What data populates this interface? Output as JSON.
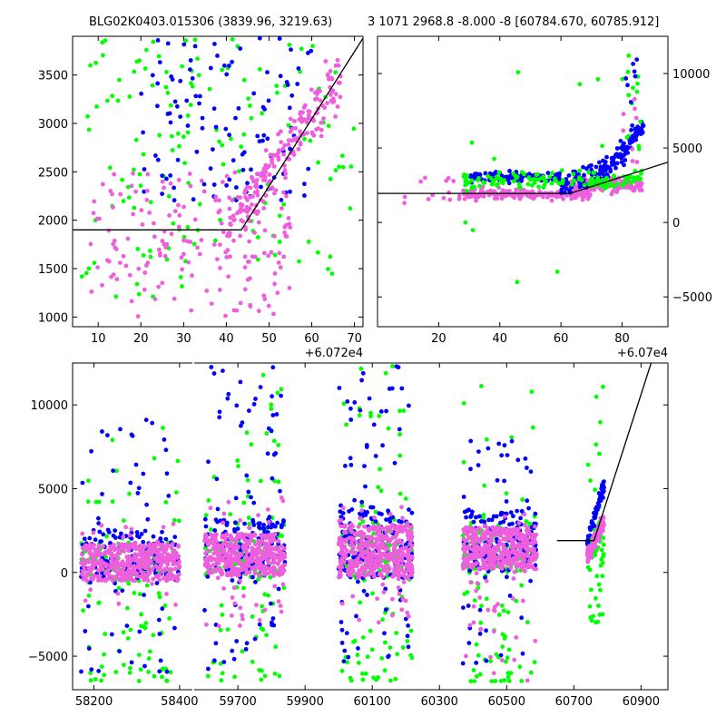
{
  "colors": {
    "green": "#00ff00",
    "blue": "#0000ff",
    "pink": "#ee5fdd",
    "line": "#000000"
  },
  "chart_data": [
    {
      "id": "zoom-left",
      "type": "scatter",
      "title": "BLG02K0403.015306 (3839.96, 3219.63)",
      "x_offset_label": "+6.072e4",
      "xlim": [
        4,
        72
      ],
      "ylim": [
        900,
        3900
      ],
      "xticks": [
        10,
        20,
        30,
        40,
        50,
        60,
        70
      ],
      "yticks": [
        1000,
        1500,
        2000,
        2500,
        3000,
        3500
      ],
      "yaxis_side": "left",
      "model": {
        "x": [
          4,
          43.5,
          72
        ],
        "y": [
          1900,
          1900,
          3880
        ]
      },
      "clouds": [
        {
          "series": "green",
          "x": [
            6,
            70
          ],
          "y": [
            1200,
            3900
          ],
          "n": 150
        },
        {
          "series": "blue",
          "x": [
            20,
            60
          ],
          "y": [
            2200,
            3900
          ],
          "n": 110
        },
        {
          "series": "pink",
          "x": [
            8,
            55
          ],
          "y": [
            1000,
            2500
          ],
          "n": 170
        },
        {
          "series": "pink",
          "x": [
            40,
            67
          ],
          "y": [
            1900,
            3500
          ],
          "n": 190
        }
      ]
    },
    {
      "id": "zoom-right",
      "type": "scatter",
      "title": "3 1071 2968.8 -8.000 -8 [60784.670, 60785.912]",
      "x_offset_label": "+6.07e4",
      "xlim": [
        0,
        95
      ],
      "ylim": [
        -7000,
        12500
      ],
      "xticks": [
        20,
        40,
        60,
        80
      ],
      "yticks": [
        -5000,
        0,
        5000,
        10000
      ],
      "yaxis_side": "right",
      "model": {
        "x": [
          0,
          63,
          95
        ],
        "y": [
          1950,
          1950,
          4050
        ]
      },
      "clouds": [
        {
          "series": "pink",
          "x": [
            8,
            30
          ],
          "y": [
            1300,
            3000
          ],
          "n": 14
        },
        {
          "series": "pink",
          "x": [
            28,
            70
          ],
          "y": [
            1000,
            2800
          ],
          "n": 170
        },
        {
          "series": "pink",
          "x": [
            60,
            87
          ],
          "y": [
            1500,
            3600
          ],
          "n": 150
        },
        {
          "series": "blue",
          "x": [
            30,
            60
          ],
          "y": [
            2200,
            3900
          ],
          "n": 110
        },
        {
          "series": "blue",
          "x": [
            60,
            87
          ],
          "y": [
            2500,
            6500
          ],
          "n": 150
        },
        {
          "series": "green",
          "x": [
            28,
            87
          ],
          "y": [
            1500,
            4200
          ],
          "n": 130
        },
        {
          "series": "green",
          "x": [
            80,
            86
          ],
          "y": [
            4500,
            12000
          ],
          "n": 14
        },
        {
          "series": "blue",
          "x": [
            80,
            86
          ],
          "y": [
            5000,
            11000
          ],
          "n": 8
        },
        {
          "series": "pink",
          "x": [
            80,
            86
          ],
          "y": [
            4000,
            8500
          ],
          "n": 8
        },
        {
          "series": "green",
          "x": [
            28,
            74
          ],
          "y": [
            -5200,
            11000
          ],
          "n": 12
        }
      ]
    },
    {
      "id": "lightcurve",
      "type": "scatter",
      "title": "",
      "ylim": [
        -7000,
        12500
      ],
      "yticks": [
        -5000,
        0,
        5000,
        10000
      ],
      "xticks": [
        58200,
        58400,
        59700,
        59900,
        60100,
        60300,
        60500,
        60700,
        60900
      ],
      "segments": [
        {
          "xlim": [
            58150,
            58430
          ]
        },
        {
          "xlim": [
            59570,
            60980
          ]
        }
      ],
      "model": {
        "x": [
          60650,
          60760,
          60930
        ],
        "y": [
          1900,
          1900,
          12500
        ]
      },
      "seasons": [
        {
          "xrange": [
            58170,
            58400
          ],
          "core": [
            -500,
            1700
          ],
          "spreadG": [
            -6500,
            12000
          ],
          "spreadB": [
            -6000,
            11000
          ],
          "spreadP": [
            -2000,
            3200
          ]
        },
        {
          "xrange": [
            59600,
            59840
          ],
          "core": [
            -200,
            2300
          ],
          "spreadG": [
            -6500,
            12300
          ],
          "spreadB": [
            -6000,
            12500
          ],
          "spreadP": [
            -3500,
            4500
          ]
        },
        {
          "xrange": [
            60000,
            60220
          ],
          "core": [
            -300,
            2800
          ],
          "spreadG": [
            -6500,
            12500
          ],
          "spreadB": [
            -5500,
            12500
          ],
          "spreadP": [
            -3000,
            4000
          ]
        },
        {
          "xrange": [
            60370,
            60590
          ],
          "core": [
            200,
            2700
          ],
          "spreadG": [
            -6500,
            11500
          ],
          "spreadB": [
            -5500,
            9500
          ],
          "spreadP": [
            -6500,
            3800
          ]
        },
        {
          "xrange": [
            60740,
            60790
          ],
          "core": [
            800,
            3300
          ],
          "spreadG": [
            -3000,
            12500
          ],
          "spreadB": [
            1500,
            7000
          ],
          "spreadP": [
            -500,
            4200
          ]
        }
      ]
    }
  ]
}
